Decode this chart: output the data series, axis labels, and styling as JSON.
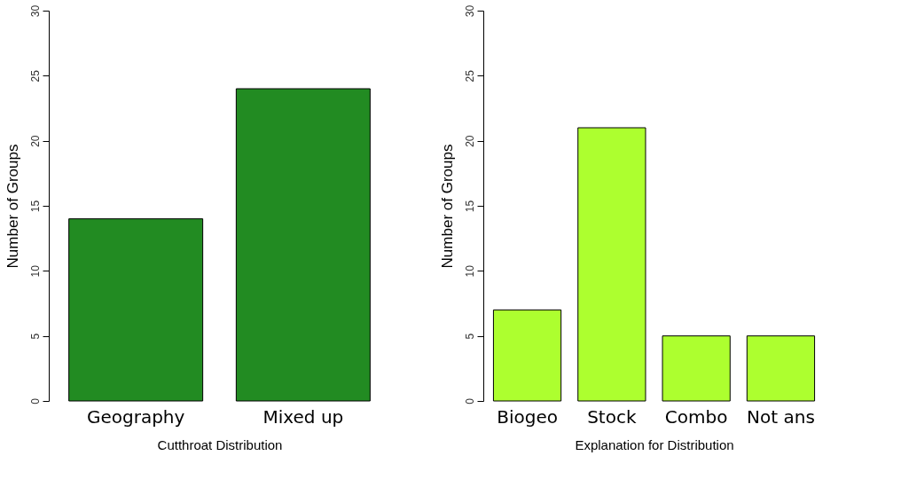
{
  "chart_data": [
    {
      "type": "bar",
      "xlabel": "Cutthroat Distribution",
      "ylabel": "Number of Groups",
      "categories": [
        "Geography",
        "Mixed up"
      ],
      "values": [
        14,
        24
      ],
      "color": "#228b22",
      "ylim": [
        0,
        30
      ],
      "yticks": [
        0,
        5,
        10,
        15,
        20,
        25,
        30
      ],
      "grid": false
    },
    {
      "type": "bar",
      "xlabel": "Explanation for Distribution",
      "ylabel": "Number of Groups",
      "categories": [
        "Biogeo",
        "Stock",
        "Combo",
        "Not ans"
      ],
      "values": [
        7,
        21,
        5,
        5
      ],
      "color": "#adff2f",
      "ylim": [
        0,
        30
      ],
      "yticks": [
        0,
        5,
        10,
        15,
        20,
        25,
        30
      ],
      "grid": false
    }
  ]
}
